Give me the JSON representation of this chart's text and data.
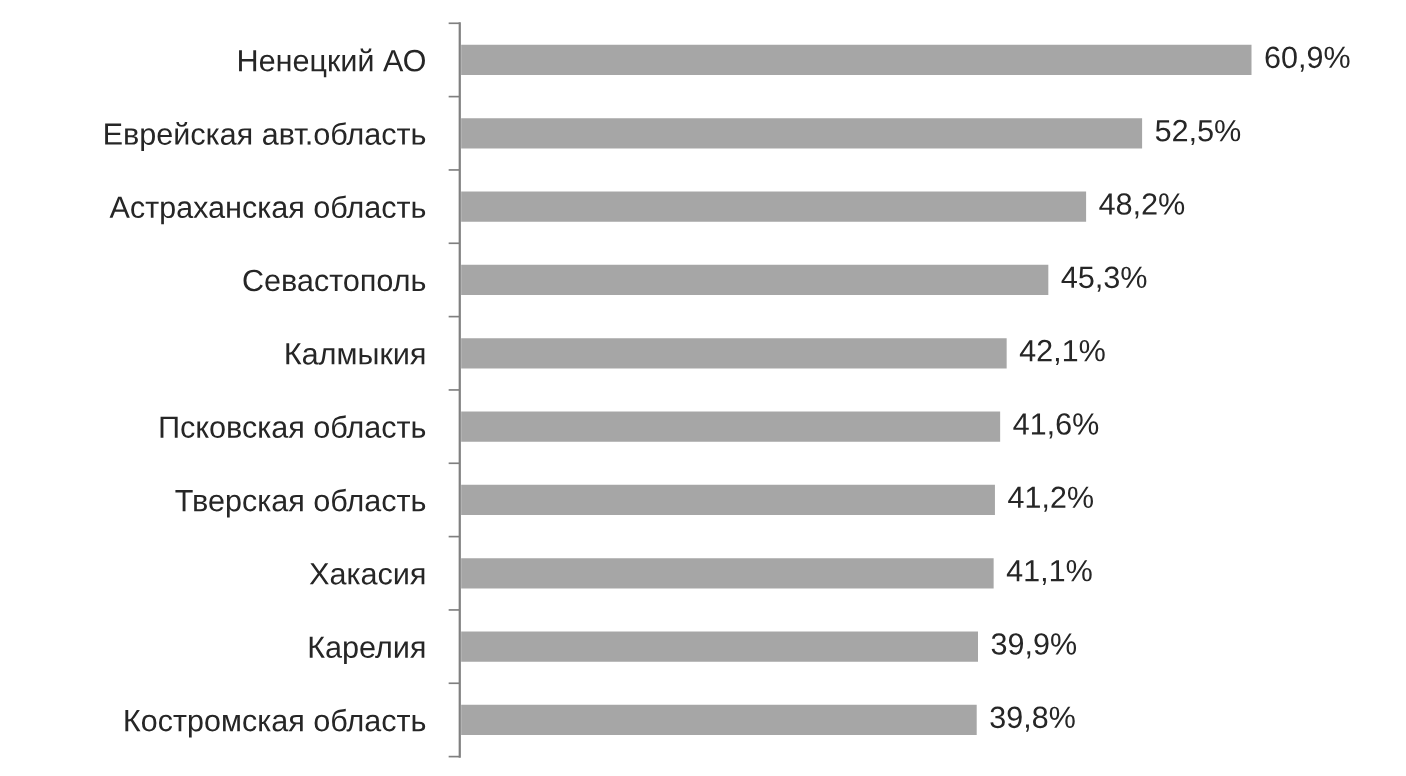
{
  "chart_data": {
    "type": "bar",
    "orientation": "horizontal",
    "categories": [
      "Ненецкий АО",
      "Еврейская авт.область",
      "Астраханская область",
      "Севастополь",
      "Калмыкия",
      "Псковская область",
      "Тверская область",
      "Хакасия",
      "Карелия",
      "Костромская область"
    ],
    "values": [
      60.9,
      52.5,
      48.2,
      45.3,
      42.1,
      41.6,
      41.2,
      41.1,
      39.9,
      39.8
    ],
    "value_labels": [
      "60,9%",
      "52,5%",
      "48,2%",
      "45,3%",
      "42,1%",
      "41,6%",
      "41,2%",
      "41,1%",
      "39,9%",
      "39,8%"
    ],
    "color": "#a6a6a6",
    "grid": false,
    "legend": false
  }
}
